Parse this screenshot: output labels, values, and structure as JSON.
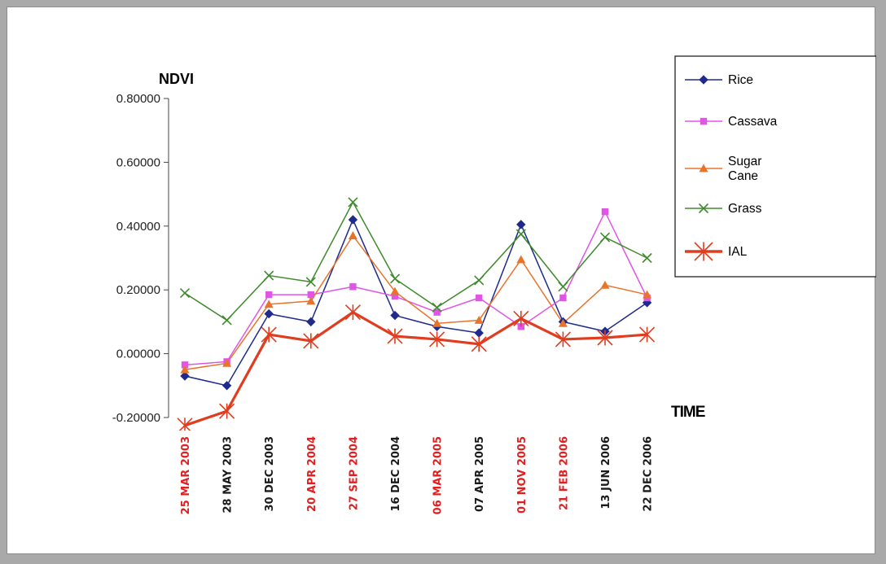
{
  "chart_data": {
    "type": "line",
    "ylabel": "NDVI",
    "xlabel": "TIME",
    "ylim": [
      -0.2,
      0.8
    ],
    "yticks": [
      "0.80000",
      "0.60000",
      "0.40000",
      "0.20000",
      "0.00000",
      "-0.20000"
    ],
    "categories": [
      "25 MAR 2003",
      "28 MAY 2003",
      "30 DEC 2003",
      "20 APR 2004",
      "27 SEP 2004",
      "16 DEC 2004",
      "06 MAR 2005",
      "07 APR 2005",
      "01 NOV 2005",
      "21 FEB 2006",
      "13 JUN 2006",
      "22 DEC 2006"
    ],
    "category_colors": [
      "#e02020",
      "#1a1a1a",
      "#1a1a1a",
      "#e02020",
      "#e02020",
      "#1a1a1a",
      "#e02020",
      "#1a1a1a",
      "#e02020",
      "#e02020",
      "#1a1a1a",
      "#1a1a1a"
    ],
    "series": [
      {
        "name": "Rice",
        "color": "#1f2a8c",
        "marker": "diamond",
        "values": [
          -0.07,
          -0.1,
          0.125,
          0.1,
          0.42,
          0.12,
          0.085,
          0.065,
          0.405,
          0.1,
          0.07,
          0.16
        ]
      },
      {
        "name": "Cassava",
        "color": "#e055e6",
        "marker": "square",
        "values": [
          -0.035,
          -0.025,
          0.185,
          0.185,
          0.21,
          0.18,
          0.13,
          0.175,
          0.085,
          0.175,
          0.445,
          0.175
        ]
      },
      {
        "name": "Sugar Cane",
        "color": "#e8742a",
        "marker": "triangle",
        "values": [
          -0.05,
          -0.03,
          0.155,
          0.165,
          0.37,
          0.195,
          0.095,
          0.105,
          0.295,
          0.095,
          0.215,
          0.185
        ]
      },
      {
        "name": "Grass",
        "color": "#3f8a2c",
        "marker": "x",
        "values": [
          0.19,
          0.105,
          0.245,
          0.225,
          0.475,
          0.235,
          0.145,
          0.23,
          0.375,
          0.21,
          0.365,
          0.3
        ]
      },
      {
        "name": "IAL",
        "color": "#e03c1f",
        "marker": "star",
        "values": [
          -0.225,
          -0.18,
          0.06,
          0.04,
          0.13,
          0.055,
          0.045,
          0.03,
          0.11,
          0.045,
          0.05,
          0.06
        ]
      }
    ],
    "legend": {
      "position": "top-right",
      "entries": [
        "Rice",
        "Cassava",
        "Sugar\nCane",
        "Grass",
        "IAL"
      ]
    }
  }
}
